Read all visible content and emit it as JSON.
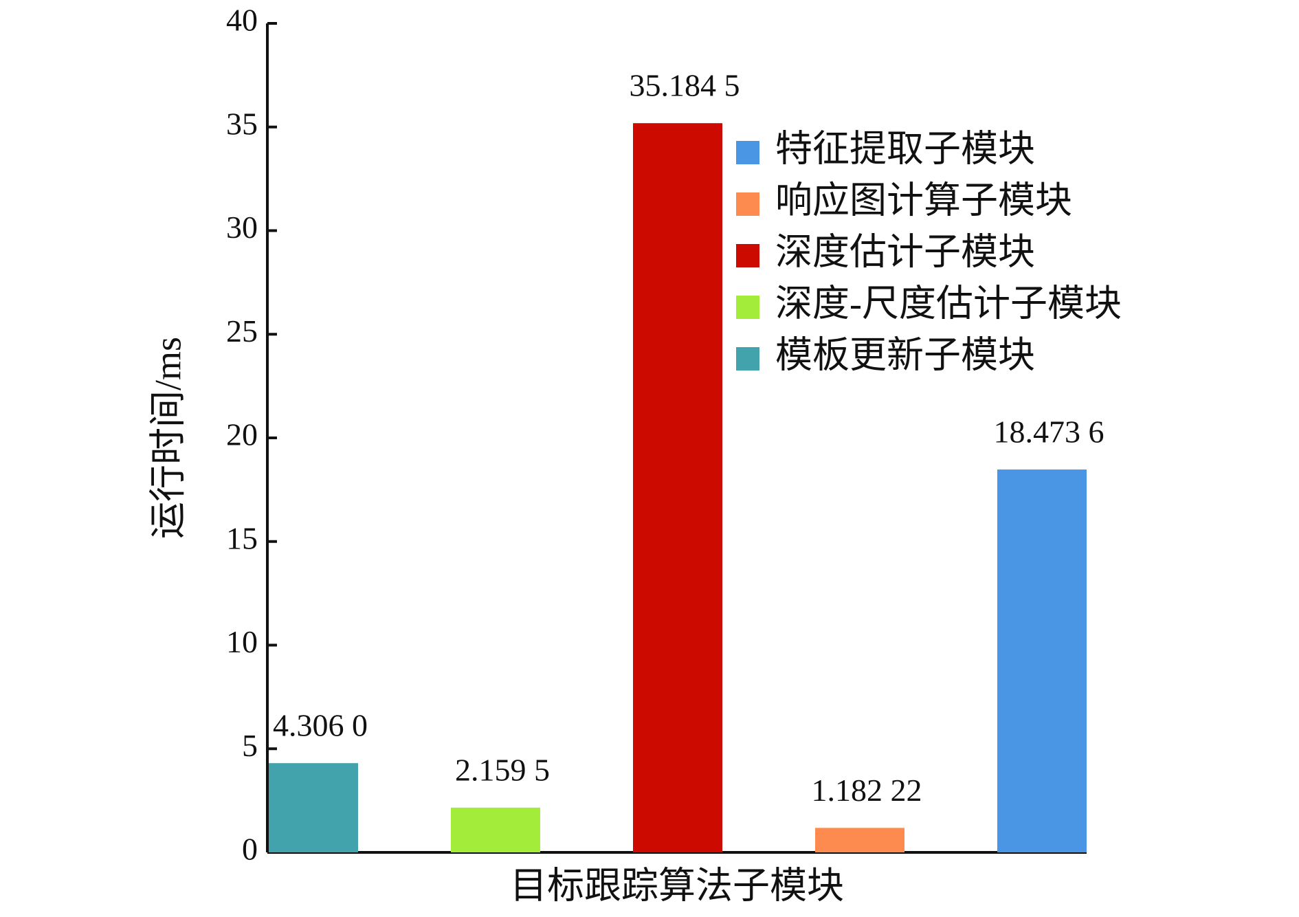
{
  "chart_data": {
    "type": "bar",
    "y_label": "运行时间/ms",
    "x_label": "目标跟踪算法子模块",
    "categories": [
      null,
      null,
      null,
      null,
      null
    ],
    "series": [
      {
        "name": "特征提取子模块",
        "color": "#4a96e4",
        "values": [
          null,
          null,
          null,
          null,
          18.4736
        ],
        "value_labels": [
          null,
          null,
          null,
          null,
          "18.473 6"
        ]
      },
      {
        "name": "响应图计算子模块",
        "color": "#fd8a4e",
        "values": [
          null,
          null,
          null,
          1.18222,
          null
        ],
        "value_labels": [
          null,
          null,
          null,
          "1.182 22",
          null
        ]
      },
      {
        "name": "深度估计子模块",
        "color": "#cc0a00",
        "values": [
          null,
          null,
          35.1845,
          null,
          null
        ],
        "value_labels": [
          null,
          null,
          "35.184 5",
          null,
          null
        ]
      },
      {
        "name": "深度-尺度估计子模块",
        "color": "#a3ec3a",
        "values": [
          null,
          2.1595,
          null,
          null,
          null
        ],
        "value_labels": [
          null,
          "2.159 5",
          null,
          null,
          null
        ]
      },
      {
        "name": "模板更新子模块",
        "color": "#43a3ad",
        "values": [
          4.306,
          null,
          null,
          null,
          null
        ],
        "value_labels": [
          "4.306 0",
          null,
          null,
          null,
          null
        ]
      }
    ],
    "ylim": [
      0,
      40
    ],
    "yticks": [
      0,
      5,
      10,
      15,
      20,
      25,
      30,
      35,
      40
    ],
    "grid": false,
    "legend": "upper right"
  }
}
